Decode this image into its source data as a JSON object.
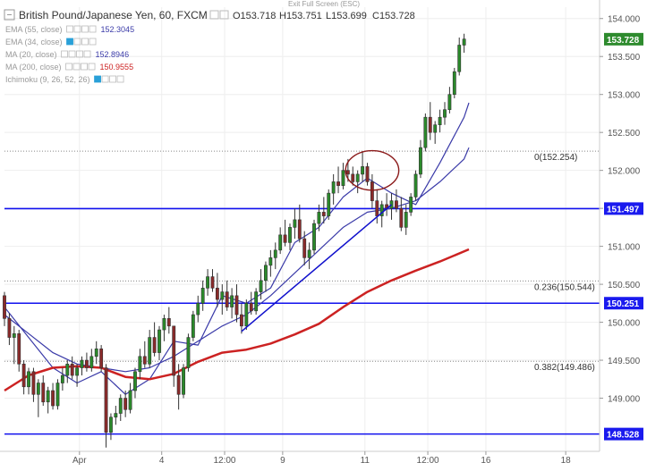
{
  "header": {
    "title": "British Pound/Japanese Yen, 60, FXCM",
    "ohlc": [
      "O153.718",
      "H153.751",
      "L153.699",
      "C153.728"
    ],
    "exit_fullscreen": "Exit Full Screen (ESC)"
  },
  "indicators": [
    {
      "label": "EMA (55, close)",
      "value": "152.3045",
      "color": "#3a3aa8",
      "value_shown": true
    },
    {
      "label": "EMA (34, close)",
      "value": "",
      "color": "#3a3aa8",
      "value_shown": false
    },
    {
      "label": "MA (20, close)",
      "value": "152.8946",
      "color": "#3a3aa8",
      "value_shown": true
    },
    {
      "label": "MA (200, close)",
      "value": "150.9555",
      "color": "#cc2222",
      "value_shown": true
    },
    {
      "label": "Ichimoku (9, 26, 52, 26)",
      "value": "",
      "color": "#999999",
      "value_shown": false
    }
  ],
  "chart_data": {
    "type": "candlestick",
    "symbol": "GBP/JPY",
    "timeframe": "60",
    "ylim": [
      148.3,
      154.15
    ],
    "y_ticks": [
      149.0,
      149.5,
      150.0,
      150.5,
      151.0,
      151.5,
      152.0,
      152.5,
      153.0,
      153.5,
      154.0
    ],
    "y_tick_labels": [
      "149.000",
      "149.500",
      "150.000",
      "150.500",
      "151.000",
      "151.500",
      "152.000",
      "152.500",
      "153.000",
      "153.500",
      "154.000"
    ],
    "x_range": [
      0,
      123
    ],
    "x_ticks": [
      {
        "x": 15.5,
        "label": "Apr"
      },
      {
        "x": 32.5,
        "label": "4"
      },
      {
        "x": 45.5,
        "label": "12:00"
      },
      {
        "x": 57.5,
        "label": "9"
      },
      {
        "x": 74.5,
        "label": "11"
      },
      {
        "x": 87.5,
        "label": "12:00"
      },
      {
        "x": 99.5,
        "label": "16"
      },
      {
        "x": 116,
        "label": "18"
      }
    ],
    "horizontal_levels": [
      {
        "value": 151.497,
        "label": "151.497"
      },
      {
        "value": 150.251,
        "label": "150.251"
      },
      {
        "value": 148.528,
        "label": "148.528"
      }
    ],
    "fibonacci_levels": [
      {
        "value": 152.254,
        "label": "0(152.254)"
      },
      {
        "value": 150.544,
        "label": "0.236(150.544)"
      },
      {
        "value": 149.486,
        "label": "0.382(149.486)"
      }
    ],
    "last_price": {
      "value": 153.728,
      "label": "153.728"
    },
    "trendline": {
      "start": [
        49,
        149.88
      ],
      "end": [
        80,
        151.55
      ]
    },
    "ellipse": {
      "cx": 76,
      "cy": 152.0,
      "rx": 5.5,
      "ry": 0.26
    },
    "candles_ohlc": [
      [
        150.35,
        150.4,
        149.95,
        150.05
      ],
      [
        150.05,
        150.12,
        149.7,
        149.8
      ],
      [
        149.8,
        149.95,
        149.45,
        149.85
      ],
      [
        149.85,
        149.9,
        149.35,
        149.45
      ],
      [
        149.45,
        149.5,
        149.05,
        149.15
      ],
      [
        149.15,
        149.4,
        149.05,
        149.35
      ],
      [
        149.35,
        149.4,
        148.95,
        149.05
      ],
      [
        149.05,
        149.25,
        148.75,
        149.2
      ],
      [
        149.2,
        149.3,
        148.9,
        148.95
      ],
      [
        148.95,
        149.15,
        148.8,
        149.1
      ],
      [
        149.1,
        149.2,
        148.85,
        148.9
      ],
      [
        148.9,
        149.25,
        148.85,
        149.2
      ],
      [
        149.2,
        149.4,
        149.1,
        149.3
      ],
      [
        149.3,
        149.5,
        149.2,
        149.45
      ],
      [
        149.45,
        149.55,
        149.25,
        149.3
      ],
      [
        149.3,
        149.45,
        149.15,
        149.4
      ],
      [
        149.4,
        149.55,
        149.3,
        149.5
      ],
      [
        149.5,
        149.6,
        149.35,
        149.4
      ],
      [
        149.4,
        149.65,
        149.35,
        149.55
      ],
      [
        149.55,
        149.75,
        149.45,
        149.65
      ],
      [
        149.65,
        149.7,
        149.35,
        149.4
      ],
      [
        149.4,
        149.45,
        148.35,
        148.55
      ],
      [
        148.55,
        148.8,
        148.45,
        148.75
      ],
      [
        148.75,
        148.9,
        148.65,
        148.8
      ],
      [
        148.8,
        149.05,
        148.7,
        149.0
      ],
      [
        149.0,
        149.1,
        148.75,
        148.85
      ],
      [
        148.85,
        149.2,
        148.8,
        149.1
      ],
      [
        149.1,
        149.4,
        149.0,
        149.35
      ],
      [
        149.35,
        149.65,
        149.25,
        149.55
      ],
      [
        149.55,
        149.75,
        149.4,
        149.45
      ],
      [
        149.45,
        149.9,
        149.4,
        149.8
      ],
      [
        149.8,
        150.0,
        149.55,
        149.6
      ],
      [
        149.6,
        149.95,
        149.5,
        149.9
      ],
      [
        149.9,
        150.1,
        149.75,
        150.05
      ],
      [
        150.05,
        150.2,
        149.85,
        149.95
      ],
      [
        149.95,
        149.95,
        149.15,
        149.3
      ],
      [
        149.3,
        149.45,
        148.85,
        149.05
      ],
      [
        149.05,
        149.45,
        149.0,
        149.4
      ],
      [
        149.4,
        149.85,
        149.35,
        149.8
      ],
      [
        149.8,
        150.15,
        149.75,
        150.1
      ],
      [
        150.1,
        150.35,
        150.0,
        150.25
      ],
      [
        150.25,
        150.55,
        150.15,
        150.45
      ],
      [
        150.45,
        150.7,
        150.35,
        150.6
      ],
      [
        150.6,
        150.7,
        150.4,
        150.45
      ],
      [
        150.45,
        150.65,
        150.2,
        150.3
      ],
      [
        150.3,
        150.5,
        150.1,
        150.4
      ],
      [
        150.4,
        150.55,
        150.15,
        150.2
      ],
      [
        150.2,
        150.45,
        150.05,
        150.35
      ],
      [
        150.35,
        150.5,
        150.0,
        150.1
      ],
      [
        150.1,
        150.25,
        149.85,
        149.95
      ],
      [
        149.95,
        150.3,
        149.9,
        150.25
      ],
      [
        150.25,
        150.4,
        150.1,
        150.15
      ],
      [
        150.15,
        150.45,
        150.1,
        150.4
      ],
      [
        150.4,
        150.7,
        150.3,
        150.55
      ],
      [
        150.55,
        150.8,
        150.4,
        150.75
      ],
      [
        150.75,
        150.95,
        150.6,
        150.85
      ],
      [
        150.85,
        151.05,
        150.7,
        150.95
      ],
      [
        150.95,
        151.25,
        150.9,
        151.15
      ],
      [
        151.15,
        151.35,
        151.0,
        151.05
      ],
      [
        151.05,
        151.3,
        150.95,
        151.25
      ],
      [
        151.25,
        151.5,
        151.1,
        151.35
      ],
      [
        151.35,
        151.55,
        151.05,
        151.1
      ],
      [
        151.1,
        151.2,
        150.75,
        150.85
      ],
      [
        150.85,
        151.05,
        150.7,
        150.95
      ],
      [
        150.95,
        151.35,
        150.9,
        151.3
      ],
      [
        151.3,
        151.55,
        151.2,
        151.45
      ],
      [
        151.45,
        151.65,
        151.3,
        151.4
      ],
      [
        151.4,
        151.75,
        151.35,
        151.7
      ],
      [
        151.7,
        151.95,
        151.55,
        151.85
      ],
      [
        151.85,
        152.05,
        151.7,
        151.8
      ],
      [
        151.8,
        152.1,
        151.75,
        152.0
      ],
      [
        152.0,
        152.15,
        151.85,
        151.95
      ],
      [
        151.95,
        152.05,
        151.8,
        151.85
      ],
      [
        151.85,
        152.0,
        151.7,
        151.95
      ],
      [
        151.95,
        152.25,
        151.85,
        152.05
      ],
      [
        152.05,
        152.1,
        151.8,
        151.85
      ],
      [
        151.85,
        151.95,
        151.5,
        151.6
      ],
      [
        151.6,
        151.75,
        151.3,
        151.4
      ],
      [
        151.4,
        151.6,
        151.25,
        151.55
      ],
      [
        151.55,
        151.7,
        151.4,
        151.5
      ],
      [
        151.5,
        151.7,
        151.35,
        151.6
      ],
      [
        151.6,
        151.75,
        151.45,
        151.5
      ],
      [
        151.5,
        151.65,
        151.2,
        151.25
      ],
      [
        151.25,
        151.55,
        151.15,
        151.45
      ],
      [
        151.45,
        151.7,
        151.4,
        151.65
      ],
      [
        151.65,
        152.0,
        151.6,
        151.95
      ],
      [
        151.95,
        152.4,
        151.9,
        152.3
      ],
      [
        152.3,
        152.75,
        152.25,
        152.7
      ],
      [
        152.7,
        152.9,
        152.4,
        152.5
      ],
      [
        152.5,
        152.65,
        152.35,
        152.6
      ],
      [
        152.6,
        152.8,
        152.5,
        152.7
      ],
      [
        152.7,
        152.9,
        152.6,
        152.8
      ],
      [
        152.8,
        153.1,
        152.75,
        153.0
      ],
      [
        153.0,
        153.35,
        152.95,
        153.3
      ],
      [
        153.3,
        153.75,
        153.25,
        153.65
      ],
      [
        153.65,
        153.8,
        153.55,
        153.73
      ]
    ],
    "ma_series": [
      {
        "name": "EMA (55, close)",
        "color": "#3a3aa8",
        "points": [
          [
            0,
            150.1
          ],
          [
            5,
            149.85
          ],
          [
            10,
            149.6
          ],
          [
            15,
            149.45
          ],
          [
            20,
            149.4
          ],
          [
            25,
            149.35
          ],
          [
            30,
            149.4
          ],
          [
            35,
            149.55
          ],
          [
            40,
            149.75
          ],
          [
            45,
            149.95
          ],
          [
            50,
            150.1
          ],
          [
            55,
            150.35
          ],
          [
            60,
            150.65
          ],
          [
            65,
            150.95
          ],
          [
            70,
            151.25
          ],
          [
            75,
            151.45
          ],
          [
            80,
            151.5
          ],
          [
            85,
            151.6
          ],
          [
            90,
            151.85
          ],
          [
            95,
            152.15
          ],
          [
            96,
            152.3
          ]
        ]
      },
      {
        "name": "MA (20, close)",
        "color": "#3a3aa8",
        "points": [
          [
            0,
            150.2
          ],
          [
            5,
            149.8
          ],
          [
            10,
            149.4
          ],
          [
            15,
            149.2
          ],
          [
            20,
            149.35
          ],
          [
            25,
            149.05
          ],
          [
            30,
            149.25
          ],
          [
            35,
            149.75
          ],
          [
            40,
            149.7
          ],
          [
            45,
            150.35
          ],
          [
            50,
            150.25
          ],
          [
            55,
            150.45
          ],
          [
            60,
            151.05
          ],
          [
            65,
            151.25
          ],
          [
            70,
            151.65
          ],
          [
            75,
            151.9
          ],
          [
            80,
            151.7
          ],
          [
            85,
            151.55
          ],
          [
            90,
            152.1
          ],
          [
            95,
            152.7
          ],
          [
            96,
            152.89
          ]
        ]
      },
      {
        "name": "MA (200, close)",
        "color": "#cc2222",
        "points": [
          [
            0,
            149.1
          ],
          [
            5,
            149.3
          ],
          [
            10,
            149.4
          ],
          [
            15,
            149.42
          ],
          [
            20,
            149.4
          ],
          [
            25,
            149.28
          ],
          [
            30,
            149.25
          ],
          [
            35,
            149.32
          ],
          [
            40,
            149.48
          ],
          [
            45,
            149.6
          ],
          [
            50,
            149.64
          ],
          [
            55,
            149.72
          ],
          [
            60,
            149.84
          ],
          [
            65,
            149.98
          ],
          [
            70,
            150.2
          ],
          [
            75,
            150.4
          ],
          [
            80,
            150.55
          ],
          [
            85,
            150.68
          ],
          [
            90,
            150.8
          ],
          [
            96,
            150.96
          ]
        ]
      }
    ]
  }
}
